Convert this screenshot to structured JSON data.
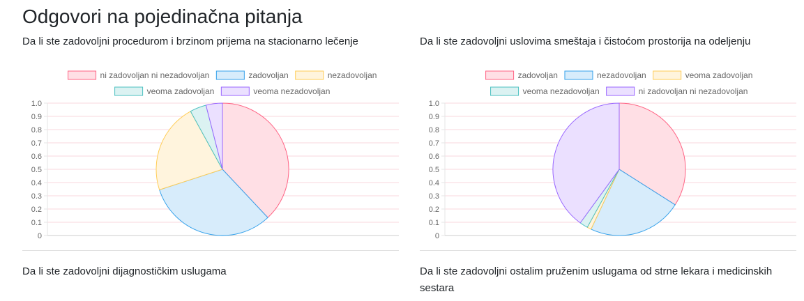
{
  "page": {
    "title": "Odgovori na pojedinačna pitanja"
  },
  "questions": [
    "Da li ste zadovoljni procedurom i brzinom prijema na stacionarno lečenje",
    "Da li ste zadovoljni uslovima smeštaja i čistoćom prostorija na odeljenju",
    "Da li ste zadovoljni dijagnostičkim uslugama",
    "Da li ste zadovoljni ostalim pruženim uslugama od strne lekara i medicinskih sestara"
  ],
  "chart_data": [
    {
      "type": "pie",
      "title": "Da li ste zadovoljni procedurom i brzinom prijema na stacionarno lečenje",
      "categories": [
        "ni zadovoljan ni nezadovoljan",
        "zadovoljan",
        "nezadovoljan",
        "veoma zadovoljan",
        "veoma nezadovoljan"
      ],
      "values": [
        38,
        32,
        22,
        4,
        4
      ],
      "colors": [
        "#ff6384",
        "#36a2eb",
        "#ffcd56",
        "#4bc0c0",
        "#9966ff"
      ],
      "fills": [
        "#ffdfe5",
        "#d7ecfb",
        "#fff4dd",
        "#dbf2f2",
        "#ebe0ff"
      ],
      "y_ticks": [
        "1.0",
        "0.9",
        "0.8",
        "0.7",
        "0.6",
        "0.5",
        "0.4",
        "0.3",
        "0.2",
        "0.1",
        "0"
      ],
      "ylim": [
        0,
        1
      ],
      "legend_position": "top",
      "grid": true
    },
    {
      "type": "pie",
      "title": "Da li ste zadovoljni uslovima smeštaja i čistoćom prostorija na odeljenju",
      "categories": [
        "zadovoljan",
        "nezadovoljan",
        "veoma zadovoljan",
        "veoma nezadovoljan",
        "ni zadovoljan ni nezadovoljan"
      ],
      "values": [
        34,
        23,
        1,
        2,
        40
      ],
      "colors": [
        "#ff6384",
        "#36a2eb",
        "#ffcd56",
        "#4bc0c0",
        "#9966ff"
      ],
      "fills": [
        "#ffdfe5",
        "#d7ecfb",
        "#fff4dd",
        "#dbf2f2",
        "#ebe0ff"
      ],
      "y_ticks": [
        "1.0",
        "0.9",
        "0.8",
        "0.7",
        "0.6",
        "0.5",
        "0.4",
        "0.3",
        "0.2",
        "0.1",
        "0"
      ],
      "ylim": [
        0,
        1
      ],
      "legend_position": "top",
      "grid": true
    }
  ]
}
